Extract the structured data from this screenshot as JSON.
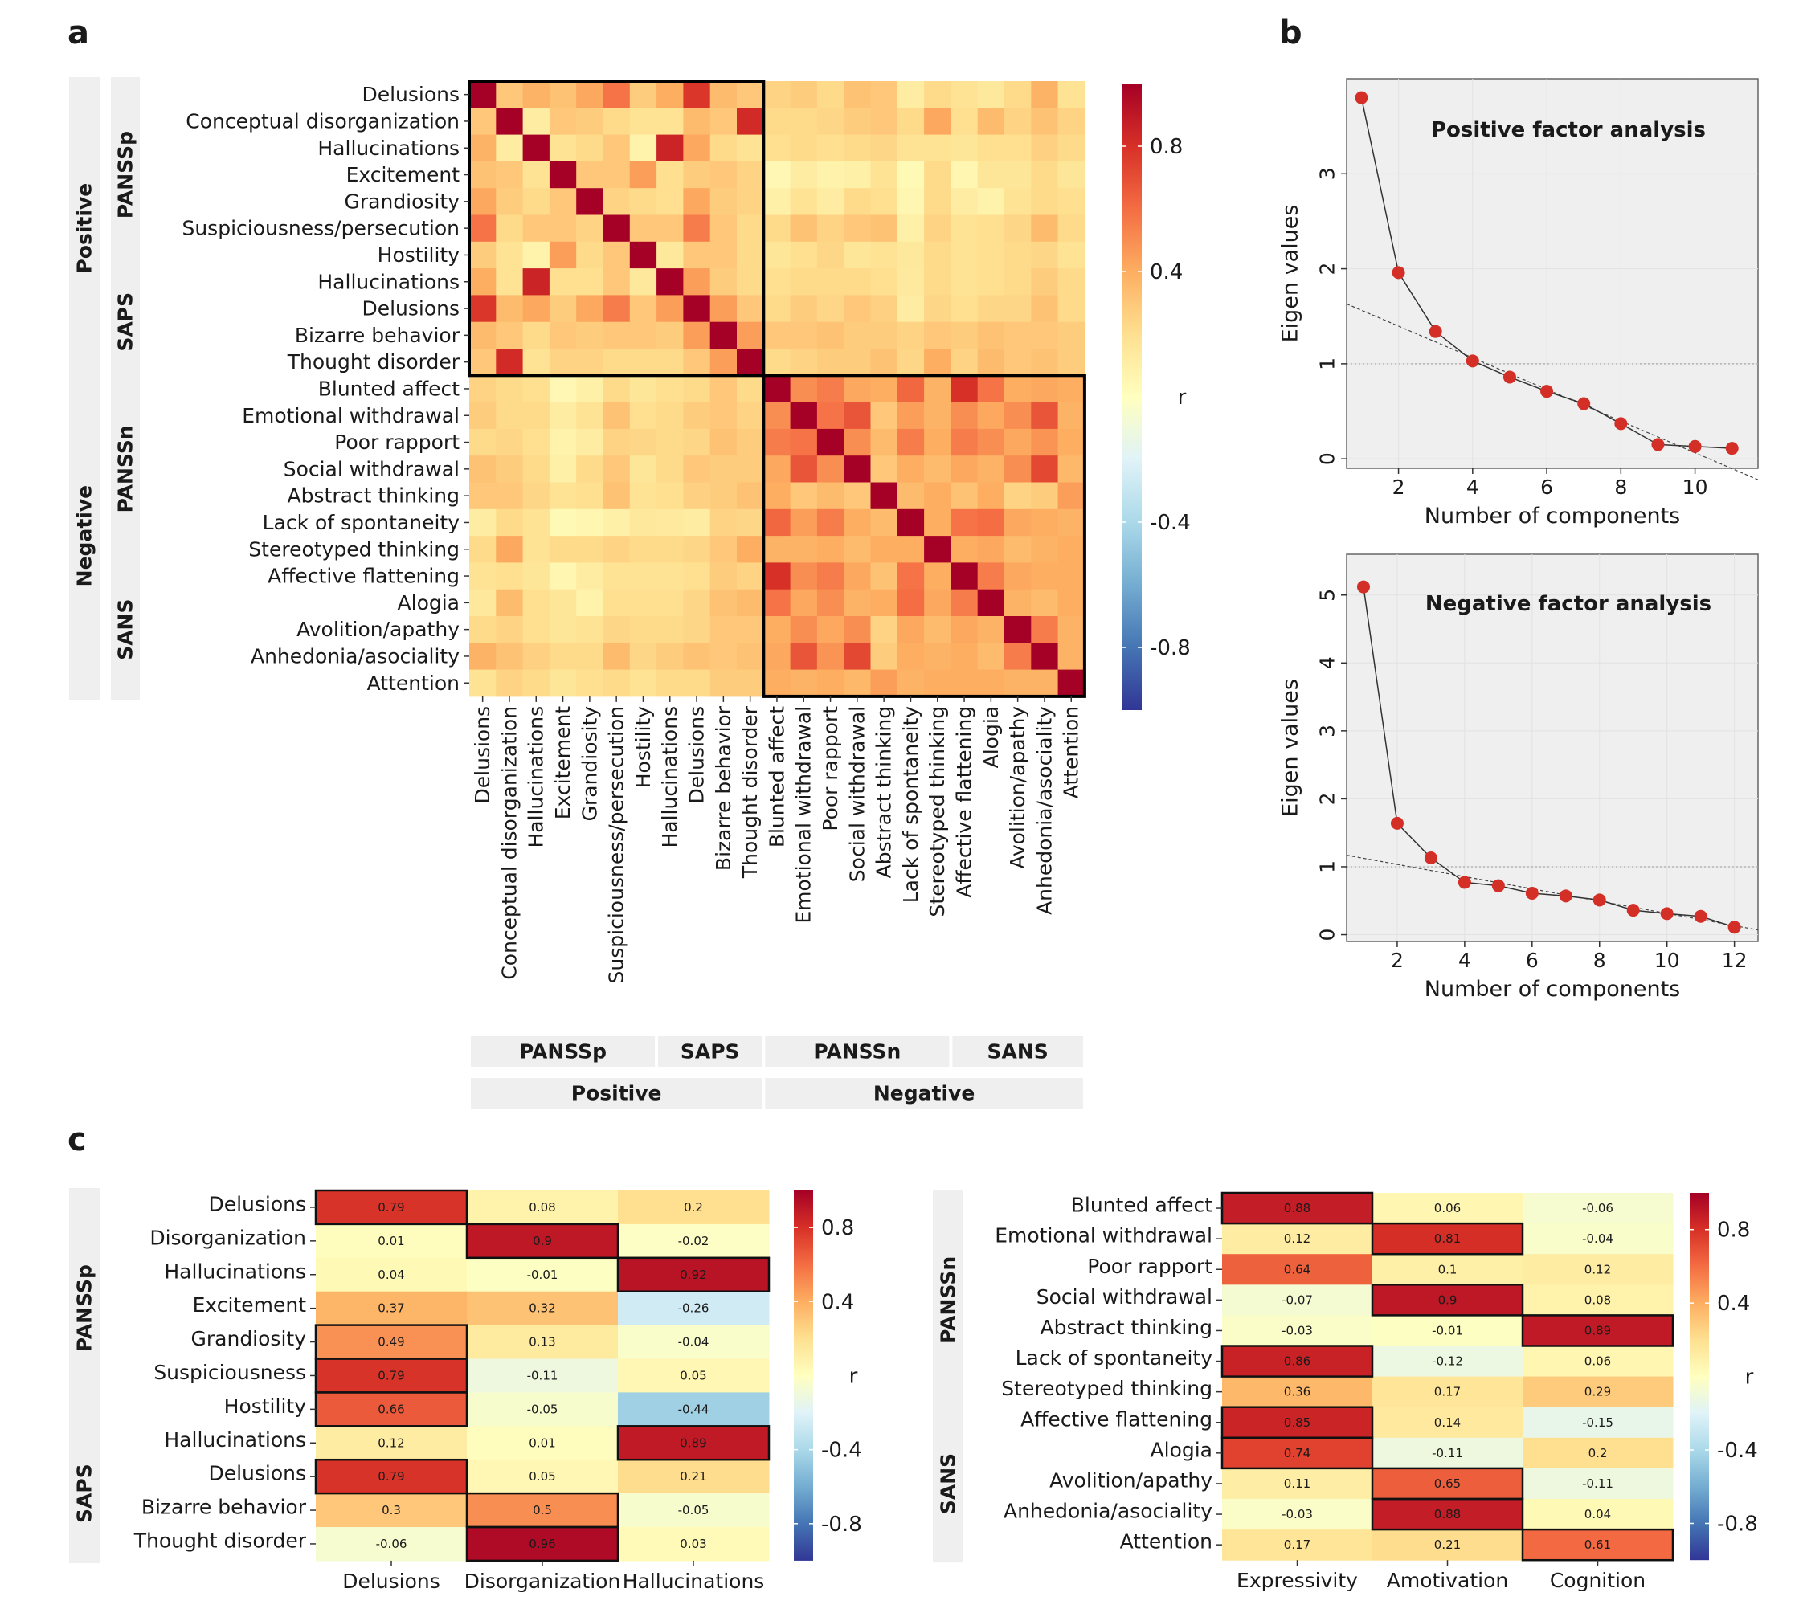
{
  "panel_letters": {
    "a": "a",
    "b": "b",
    "c": "c"
  },
  "colors": {
    "strip": "#efefef",
    "plot_bg": "#efefef",
    "point": "#d32f27",
    "line": "#333333",
    "cell_border": "#111111",
    "colorbar_stops": [
      "#313695",
      "#4575b4",
      "#74add1",
      "#abd9e9",
      "#e0f3f8",
      "#ffffbf",
      "#fee090",
      "#fdae61",
      "#f46d43",
      "#d73027",
      "#a50026"
    ]
  },
  "chart_data": [
    {
      "id": "panel-a",
      "type": "heatmap",
      "title": "",
      "labels": [
        "Delusions",
        "Conceptual disorganization",
        "Hallucinations",
        "Excitement",
        "Grandiosity",
        "Suspiciousness/persecution",
        "Hostility",
        "Hallucinations",
        "Delusions",
        "Bizarre behavior",
        "Thought disorder",
        "Blunted affect",
        "Emotional withdrawal",
        "Poor rapport",
        "Social withdrawal",
        "Abstract thinking",
        "Lack of spontaneity",
        "Stereotyped thinking",
        "Affective flattening",
        "Alogia",
        "Avolition/apathy",
        "Anhedonia/asociality",
        "Attention"
      ],
      "row_groups": [
        {
          "label": "PANSSp",
          "start": 0,
          "end": 6
        },
        {
          "label": "SAPS",
          "start": 7,
          "end": 10
        },
        {
          "label": "PANSSn",
          "start": 11,
          "end": 17
        },
        {
          "label": "SANS",
          "start": 18,
          "end": 22
        }
      ],
      "super_groups": [
        {
          "label": "Positive",
          "start": 0,
          "end": 10
        },
        {
          "label": "Negative",
          "start": 11,
          "end": 22
        }
      ],
      "colorbar": {
        "label": "r",
        "ticks": [
          "0.8",
          "0.4",
          "-0.4",
          "-0.8"
        ],
        "tick_values": [
          0.8,
          0.4,
          -0.4,
          -0.8
        ],
        "range": [
          -1,
          1
        ]
      },
      "matrix": [
        [
          1.0,
          0.3,
          0.38,
          0.32,
          0.42,
          0.58,
          0.28,
          0.4,
          0.78,
          0.35,
          0.3,
          0.25,
          0.28,
          0.22,
          0.32,
          0.3,
          0.12,
          0.22,
          0.18,
          0.15,
          0.22,
          0.38,
          0.18
        ],
        [
          0.3,
          1.0,
          0.12,
          0.3,
          0.28,
          0.22,
          0.18,
          0.18,
          0.35,
          0.3,
          0.82,
          0.22,
          0.22,
          0.24,
          0.28,
          0.3,
          0.22,
          0.42,
          0.2,
          0.35,
          0.25,
          0.32,
          0.25
        ],
        [
          0.38,
          0.12,
          1.0,
          0.18,
          0.22,
          0.3,
          0.08,
          0.85,
          0.42,
          0.22,
          0.18,
          0.2,
          0.22,
          0.2,
          0.22,
          0.24,
          0.18,
          0.18,
          0.16,
          0.2,
          0.2,
          0.26,
          0.22
        ],
        [
          0.32,
          0.3,
          0.18,
          1.0,
          0.3,
          0.3,
          0.45,
          0.2,
          0.28,
          0.3,
          0.25,
          0.05,
          0.12,
          0.08,
          0.1,
          0.18,
          0.04,
          0.22,
          0.06,
          0.16,
          0.16,
          0.22,
          0.16
        ],
        [
          0.42,
          0.28,
          0.22,
          0.3,
          1.0,
          0.25,
          0.22,
          0.2,
          0.42,
          0.28,
          0.25,
          0.1,
          0.18,
          0.12,
          0.22,
          0.2,
          0.06,
          0.22,
          0.12,
          0.08,
          0.18,
          0.22,
          0.2
        ],
        [
          0.58,
          0.22,
          0.3,
          0.3,
          0.25,
          1.0,
          0.3,
          0.3,
          0.55,
          0.3,
          0.22,
          0.22,
          0.32,
          0.25,
          0.3,
          0.32,
          0.1,
          0.25,
          0.18,
          0.2,
          0.24,
          0.35,
          0.22
        ],
        [
          0.28,
          0.18,
          0.08,
          0.45,
          0.22,
          0.3,
          1.0,
          0.15,
          0.3,
          0.3,
          0.22,
          0.16,
          0.2,
          0.24,
          0.16,
          0.18,
          0.15,
          0.22,
          0.18,
          0.2,
          0.22,
          0.24,
          0.18
        ],
        [
          0.4,
          0.18,
          0.85,
          0.2,
          0.2,
          0.3,
          0.15,
          1.0,
          0.45,
          0.28,
          0.22,
          0.2,
          0.22,
          0.22,
          0.22,
          0.2,
          0.14,
          0.22,
          0.18,
          0.2,
          0.22,
          0.28,
          0.22
        ],
        [
          0.78,
          0.35,
          0.42,
          0.28,
          0.42,
          0.55,
          0.3,
          0.45,
          1.0,
          0.45,
          0.3,
          0.22,
          0.28,
          0.24,
          0.3,
          0.26,
          0.12,
          0.24,
          0.2,
          0.24,
          0.24,
          0.32,
          0.22
        ],
        [
          0.35,
          0.3,
          0.22,
          0.3,
          0.28,
          0.3,
          0.3,
          0.28,
          0.45,
          1.0,
          0.45,
          0.3,
          0.3,
          0.32,
          0.28,
          0.28,
          0.25,
          0.3,
          0.28,
          0.32,
          0.3,
          0.3,
          0.28
        ],
        [
          0.3,
          0.82,
          0.18,
          0.25,
          0.25,
          0.22,
          0.22,
          0.22,
          0.3,
          0.45,
          1.0,
          0.22,
          0.25,
          0.28,
          0.28,
          0.32,
          0.24,
          0.4,
          0.25,
          0.35,
          0.3,
          0.32,
          0.28
        ],
        [
          0.25,
          0.22,
          0.2,
          0.05,
          0.1,
          0.22,
          0.16,
          0.2,
          0.22,
          0.3,
          0.22,
          1.0,
          0.5,
          0.55,
          0.42,
          0.4,
          0.62,
          0.38,
          0.8,
          0.58,
          0.4,
          0.42,
          0.4
        ],
        [
          0.28,
          0.22,
          0.22,
          0.12,
          0.18,
          0.32,
          0.2,
          0.22,
          0.28,
          0.3,
          0.25,
          0.5,
          1.0,
          0.58,
          0.68,
          0.3,
          0.45,
          0.38,
          0.5,
          0.42,
          0.5,
          0.68,
          0.38
        ],
        [
          0.22,
          0.24,
          0.2,
          0.08,
          0.12,
          0.25,
          0.24,
          0.22,
          0.24,
          0.32,
          0.28,
          0.55,
          0.58,
          1.0,
          0.5,
          0.35,
          0.55,
          0.4,
          0.55,
          0.5,
          0.42,
          0.48,
          0.4
        ],
        [
          0.32,
          0.28,
          0.22,
          0.1,
          0.22,
          0.3,
          0.16,
          0.22,
          0.3,
          0.28,
          0.28,
          0.42,
          0.68,
          0.5,
          1.0,
          0.3,
          0.4,
          0.35,
          0.42,
          0.38,
          0.5,
          0.72,
          0.36
        ],
        [
          0.3,
          0.3,
          0.24,
          0.18,
          0.2,
          0.32,
          0.18,
          0.2,
          0.26,
          0.28,
          0.32,
          0.4,
          0.3,
          0.35,
          0.3,
          1.0,
          0.35,
          0.4,
          0.32,
          0.4,
          0.25,
          0.28,
          0.45
        ],
        [
          0.12,
          0.22,
          0.18,
          0.04,
          0.06,
          0.1,
          0.15,
          0.14,
          0.12,
          0.25,
          0.24,
          0.62,
          0.45,
          0.55,
          0.4,
          0.35,
          1.0,
          0.4,
          0.58,
          0.6,
          0.42,
          0.4,
          0.38
        ],
        [
          0.22,
          0.42,
          0.18,
          0.22,
          0.22,
          0.25,
          0.22,
          0.22,
          0.24,
          0.3,
          0.4,
          0.38,
          0.38,
          0.4,
          0.35,
          0.4,
          0.4,
          1.0,
          0.4,
          0.42,
          0.35,
          0.38,
          0.4
        ],
        [
          0.18,
          0.2,
          0.16,
          0.06,
          0.12,
          0.18,
          0.18,
          0.18,
          0.2,
          0.28,
          0.25,
          0.8,
          0.5,
          0.55,
          0.42,
          0.32,
          0.58,
          0.4,
          1.0,
          0.55,
          0.42,
          0.4,
          0.4
        ],
        [
          0.15,
          0.35,
          0.2,
          0.16,
          0.08,
          0.2,
          0.2,
          0.2,
          0.24,
          0.32,
          0.35,
          0.58,
          0.42,
          0.5,
          0.38,
          0.4,
          0.6,
          0.42,
          0.55,
          1.0,
          0.38,
          0.35,
          0.4
        ],
        [
          0.22,
          0.25,
          0.2,
          0.16,
          0.18,
          0.24,
          0.22,
          0.22,
          0.24,
          0.3,
          0.3,
          0.4,
          0.5,
          0.42,
          0.5,
          0.25,
          0.42,
          0.35,
          0.42,
          0.38,
          1.0,
          0.55,
          0.38
        ],
        [
          0.38,
          0.32,
          0.26,
          0.22,
          0.22,
          0.35,
          0.24,
          0.28,
          0.32,
          0.3,
          0.32,
          0.42,
          0.68,
          0.48,
          0.72,
          0.28,
          0.4,
          0.38,
          0.4,
          0.35,
          0.55,
          1.0,
          0.38
        ],
        [
          0.18,
          0.25,
          0.22,
          0.16,
          0.2,
          0.22,
          0.18,
          0.22,
          0.22,
          0.28,
          0.28,
          0.4,
          0.38,
          0.4,
          0.36,
          0.45,
          0.38,
          0.4,
          0.4,
          0.4,
          0.38,
          0.38,
          1.0
        ]
      ]
    },
    {
      "id": "panel-b-positive",
      "type": "scatter",
      "title": "Positive factor analysis",
      "xlabel": "Number of components",
      "ylabel": "Eigen values",
      "x": [
        1,
        2,
        3,
        4,
        5,
        6,
        7,
        8,
        9,
        10,
        11
      ],
      "y": [
        3.8,
        1.96,
        1.34,
        1.03,
        0.86,
        0.71,
        0.58,
        0.37,
        0.15,
        0.13,
        0.11
      ],
      "xlim": [
        0.6,
        11.7
      ],
      "ylim": [
        -0.1,
        4.0
      ],
      "xticks": [
        2,
        4,
        6,
        8,
        10
      ],
      "yticks": [
        0,
        1,
        2,
        3
      ],
      "hline": 1,
      "fit_line": {
        "x": [
          0.6,
          11.7
        ],
        "y": [
          1.63,
          -0.22
        ]
      }
    },
    {
      "id": "panel-b-negative",
      "type": "scatter",
      "title": "Negative factor analysis",
      "xlabel": "Number of components",
      "ylabel": "Eigen values",
      "x": [
        1,
        2,
        3,
        4,
        5,
        6,
        7,
        8,
        9,
        10,
        11,
        12
      ],
      "y": [
        5.12,
        1.64,
        1.13,
        0.77,
        0.72,
        0.61,
        0.57,
        0.51,
        0.36,
        0.31,
        0.27,
        0.11
      ],
      "xlim": [
        0.5,
        12.7
      ],
      "ylim": [
        -0.1,
        5.6
      ],
      "xticks": [
        2,
        4,
        6,
        8,
        10,
        12
      ],
      "yticks": [
        0,
        1,
        2,
        3,
        4,
        5
      ],
      "hline": 1,
      "fit_line": {
        "x": [
          0.5,
          12.7
        ],
        "y": [
          1.17,
          0.07
        ]
      }
    },
    {
      "id": "panel-c-positive",
      "type": "heatmap",
      "rows": [
        "Delusions",
        "Disorganization",
        "Hallucinations",
        "Excitement",
        "Grandiosity",
        "Suspiciousness",
        "Hostility",
        "Hallucinations",
        "Delusions",
        "Bizarre behavior",
        "Thought disorder"
      ],
      "columns": [
        "Delusions",
        "Disorganization",
        "Hallucinations"
      ],
      "row_groups": [
        {
          "label": "PANSSp",
          "start": 0,
          "end": 6
        },
        {
          "label": "SAPS",
          "start": 7,
          "end": 10
        }
      ],
      "colorbar": {
        "label": "r",
        "ticks": [
          "0.8",
          "0.4",
          "-0.4",
          "-0.8"
        ],
        "tick_values": [
          0.8,
          0.4,
          -0.4,
          -0.8
        ],
        "range": [
          -1,
          1
        ]
      },
      "values": [
        [
          "0.79",
          "0.08",
          "0.2"
        ],
        [
          "0.01",
          "0.9",
          "-0.02"
        ],
        [
          "0.04",
          "-0.01",
          "0.92"
        ],
        [
          "0.37",
          "0.32",
          "-0.26"
        ],
        [
          "0.49",
          "0.13",
          "-0.04"
        ],
        [
          "0.79",
          "-0.11",
          "0.05"
        ],
        [
          "0.66",
          "-0.05",
          "-0.44"
        ],
        [
          "0.12",
          "0.01",
          "0.89"
        ],
        [
          "0.79",
          "0.05",
          "0.21"
        ],
        [
          "0.3",
          "0.5",
          "-0.05"
        ],
        [
          "-0.06",
          "0.96",
          "0.03"
        ]
      ],
      "highlighted": [
        [
          0,
          0
        ],
        [
          1,
          1
        ],
        [
          2,
          2
        ],
        [
          4,
          0
        ],
        [
          5,
          0
        ],
        [
          6,
          0
        ],
        [
          7,
          2
        ],
        [
          8,
          0
        ],
        [
          9,
          1
        ],
        [
          10,
          1
        ]
      ]
    },
    {
      "id": "panel-c-negative",
      "type": "heatmap",
      "rows": [
        "Blunted affect",
        "Emotional withdrawal",
        "Poor rapport",
        "Social withdrawal",
        "Abstract thinking",
        "Lack of spontaneity",
        "Stereotyped thinking",
        "Affective flattening",
        "Alogia",
        "Avolition/apathy",
        "Anhedonia/asociality",
        "Attention"
      ],
      "columns": [
        "Expressivity",
        "Amotivation",
        "Cognition"
      ],
      "row_groups": [
        {
          "label": "PANSSn",
          "start": 0,
          "end": 6
        },
        {
          "label": "SANS",
          "start": 7,
          "end": 11
        }
      ],
      "colorbar": {
        "label": "r",
        "ticks": [
          "0.8",
          "0.4",
          "-0.4",
          "-0.8"
        ],
        "tick_values": [
          0.8,
          0.4,
          -0.4,
          -0.8
        ],
        "range": [
          -1,
          1
        ]
      },
      "values": [
        [
          "0.88",
          "0.06",
          "-0.06"
        ],
        [
          "0.12",
          "0.81",
          "-0.04"
        ],
        [
          "0.64",
          "0.1",
          "0.12"
        ],
        [
          "-0.07",
          "0.9",
          "0.08"
        ],
        [
          "-0.03",
          "-0.01",
          "0.89"
        ],
        [
          "0.86",
          "-0.12",
          "0.06"
        ],
        [
          "0.36",
          "0.17",
          "0.29"
        ],
        [
          "0.85",
          "0.14",
          "-0.15"
        ],
        [
          "0.74",
          "-0.11",
          "0.2"
        ],
        [
          "0.11",
          "0.65",
          "-0.11"
        ],
        [
          "-0.03",
          "0.88",
          "0.04"
        ],
        [
          "0.17",
          "0.21",
          "0.61"
        ]
      ],
      "highlighted": [
        [
          0,
          0
        ],
        [
          1,
          1
        ],
        [
          3,
          1
        ],
        [
          4,
          2
        ],
        [
          5,
          0
        ],
        [
          7,
          0
        ],
        [
          8,
          0
        ],
        [
          9,
          1
        ],
        [
          10,
          1
        ],
        [
          11,
          2
        ]
      ]
    }
  ]
}
